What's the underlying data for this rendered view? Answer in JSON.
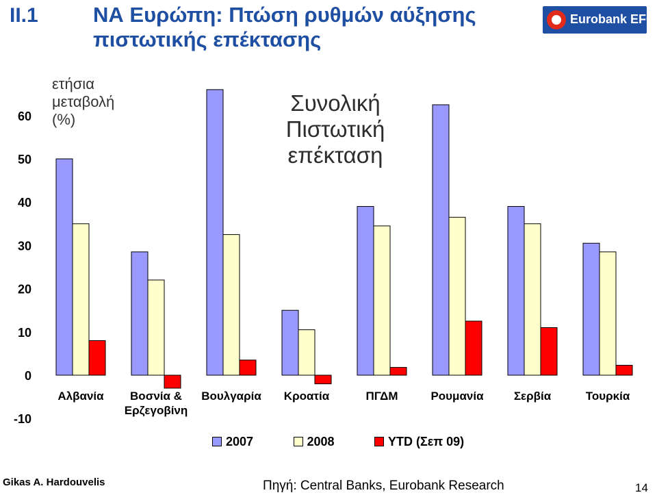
{
  "header": {
    "section": "II.1",
    "title": "ΝΑ Ευρώπη: Πτώση ρυθμών αύξησης πιστωτικής επέκτασης",
    "logo_text": "Eurobank EFG"
  },
  "chart_data": {
    "type": "bar",
    "title": "Συνολική Πιστωτική επέκταση",
    "ylabel": "ετήσια μεταβολή (%)",
    "xlabel": "",
    "categories": [
      "Αλβανία",
      "Βοσνία & Ερζεγοβίνη",
      "Βουλγαρία",
      "Κροατία",
      "ΠΓΔΜ",
      "Ρουμανία",
      "Σερβία",
      "Τουρκία"
    ],
    "series": [
      {
        "name": "2007",
        "color": "#9999ff",
        "values": [
          50,
          28.5,
          66,
          15,
          39,
          62.5,
          39,
          30.5
        ]
      },
      {
        "name": "2008",
        "color": "#ffffcc",
        "values": [
          35,
          22,
          32.5,
          10.5,
          34.5,
          36.5,
          35,
          28.5
        ]
      },
      {
        "name": "YTD (Σεπ 09)",
        "color": "#ff0000",
        "values": [
          8,
          -3,
          3.5,
          -2,
          1.8,
          12.5,
          11,
          2.3
        ]
      }
    ],
    "ylim": [
      -10,
      70
    ],
    "yticks": [
      "-10",
      "0",
      "10",
      "20",
      "30",
      "40",
      "50",
      "60"
    ],
    "grid": false,
    "legend_position": "bottom"
  },
  "footer": {
    "author": "Gikas A. Hardouvelis",
    "source": "Πηγή: Central Banks, Eurobank Research",
    "page": "14"
  }
}
